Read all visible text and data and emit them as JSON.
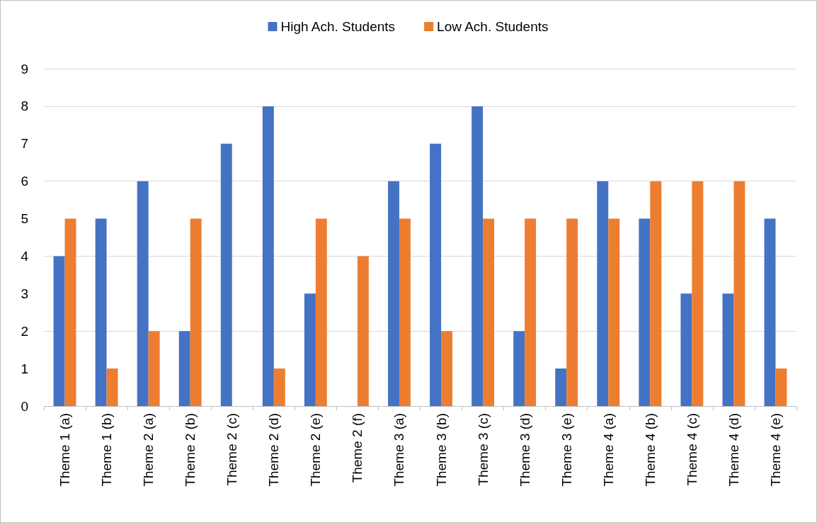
{
  "chart_data": {
    "type": "bar",
    "categories": [
      "Theme 1 (a)",
      "Theme 1 (b)",
      "Theme 2 (a)",
      "Theme 2 (b)",
      "Theme 2 (c)",
      "Theme 2 (d)",
      "Theme 2 (e)",
      "Theme 2 (f)",
      "Theme 3 (a)",
      "Theme 3 (b)",
      "Theme 3 (c)",
      "Theme 3 (d)",
      "Theme 3 (e)",
      "Theme 4 (a)",
      "Theme 4 (b)",
      "Theme 4 (c)",
      "Theme 4 (d)",
      "Theme 4 (e)"
    ],
    "series": [
      {
        "name": "High Ach. Students",
        "color": "#4472c4",
        "values": [
          4,
          5,
          6,
          2,
          7,
          8,
          3,
          0,
          6,
          7,
          8,
          2,
          1,
          6,
          5,
          3,
          3,
          5
        ]
      },
      {
        "name": "Low Ach. Students",
        "color": "#ed7d31",
        "values": [
          5,
          1,
          2,
          5,
          0,
          1,
          5,
          4,
          5,
          2,
          5,
          5,
          5,
          5,
          6,
          6,
          6,
          1
        ]
      }
    ],
    "ylim": [
      0,
      9
    ],
    "yticks": [
      0,
      1,
      2,
      3,
      4,
      5,
      6,
      7,
      8,
      9
    ],
    "grid": "y",
    "legend": "top"
  }
}
